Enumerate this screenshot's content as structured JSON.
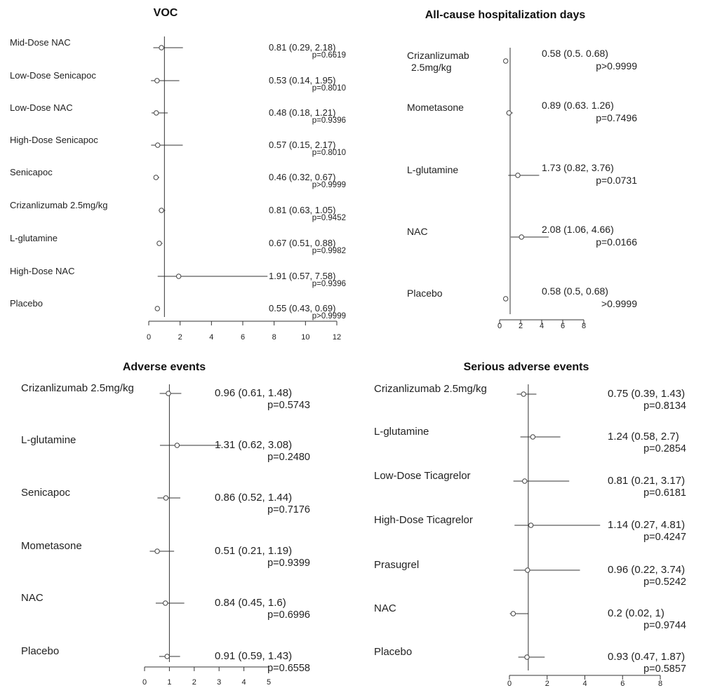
{
  "chart_data": [
    {
      "type": "forest",
      "title": "VOC",
      "ref_line": 1,
      "xlim": [
        0,
        12
      ],
      "xticks": [
        "0",
        "2",
        "4",
        "6",
        "8",
        "10",
        "12"
      ],
      "rows": [
        {
          "label": "Mid-Dose NAC",
          "est": 0.81,
          "lo": 0.29,
          "hi": 2.18,
          "ci_text": "0.81 (0.29, 2.18)",
          "p_text": "p=0.6619"
        },
        {
          "label": "Low-Dose Senicapoc",
          "est": 0.53,
          "lo": 0.14,
          "hi": 1.95,
          "ci_text": "0.53 (0.14, 1.95)",
          "p_text": "p=0.8010"
        },
        {
          "label": "Low-Dose NAC",
          "est": 0.48,
          "lo": 0.18,
          "hi": 1.21,
          "ci_text": "0.48 (0.18, 1.21)",
          "p_text": "p=0.9396"
        },
        {
          "label": "High-Dose Senicapoc",
          "est": 0.57,
          "lo": 0.15,
          "hi": 2.17,
          "ci_text": "0.57 (0.15, 2.17)",
          "p_text": "p=0.8010"
        },
        {
          "label": "Senicapoc",
          "est": 0.46,
          "lo": 0.32,
          "hi": 0.67,
          "ci_text": "0.46 (0.32, 0.67)",
          "p_text": "p>0.9999"
        },
        {
          "label": "Crizanlizumab 2.5mg/kg",
          "est": 0.81,
          "lo": 0.63,
          "hi": 1.05,
          "ci_text": "0.81 (0.63, 1.05)",
          "p_text": "p=0.9452"
        },
        {
          "label": "L-glutamine",
          "est": 0.67,
          "lo": 0.51,
          "hi": 0.88,
          "ci_text": "0.67 (0.51, 0.88)",
          "p_text": "p=0.9982"
        },
        {
          "label": "High-Dose NAC",
          "est": 1.91,
          "lo": 0.57,
          "hi": 7.58,
          "ci_text": "1.91 (0.57, 7.58)",
          "p_text": "p=0.9396"
        },
        {
          "label": "Placebo",
          "est": 0.55,
          "lo": 0.43,
          "hi": 0.69,
          "ci_text": "0.55 (0.43, 0.69)",
          "p_text": "p>0.9999"
        }
      ]
    },
    {
      "type": "forest",
      "title": "All-cause hospitalization days",
      "ref_line": 1,
      "xlim": [
        0,
        8
      ],
      "xticks": [
        "0",
        "2",
        "4",
        "6",
        "8"
      ],
      "rows": [
        {
          "label": "Crizanlizumab",
          "label2": "2.5mg/kg",
          "est": 0.58,
          "lo": 0.5,
          "hi": 0.68,
          "ci_text": "0.58 (0.5. 0.68)",
          "p_text": "p>0.9999"
        },
        {
          "label": "Mometasone",
          "est": 0.89,
          "lo": 0.63,
          "hi": 1.26,
          "ci_text": "0.89 (0.63. 1.26)",
          "p_text": "p=0.7496"
        },
        {
          "label": "L-glutamine",
          "est": 1.73,
          "lo": 0.82,
          "hi": 3.76,
          "ci_text": "1.73 (0.82, 3.76)",
          "p_text": "p=0.0731"
        },
        {
          "label": "NAC",
          "est": 2.08,
          "lo": 1.06,
          "hi": 4.66,
          "ci_text": "2.08 (1.06, 4.66)",
          "p_text": "p=0.0166"
        },
        {
          "label": "Placebo",
          "est": 0.58,
          "lo": 0.5,
          "hi": 0.68,
          "ci_text": "0.58 (0.5, 0.68)",
          "p_text": ">0.9999"
        }
      ]
    },
    {
      "type": "forest",
      "title": "Adverse events",
      "ref_line": 1,
      "xlim": [
        0,
        5
      ],
      "xticks": [
        "0",
        "1",
        "2",
        "3",
        "4",
        "5"
      ],
      "rows": [
        {
          "label": "Crizanlizumab 2.5mg/kg",
          "est": 0.96,
          "lo": 0.61,
          "hi": 1.48,
          "ci_text": "0.96 (0.61, 1.48)",
          "p_text": "p=0.5743"
        },
        {
          "label": "L-glutamine",
          "est": 1.31,
          "lo": 0.62,
          "hi": 3.08,
          "ci_text": "1.31 (0.62, 3.08)",
          "p_text": "p=0.2480"
        },
        {
          "label": "Senicapoc",
          "est": 0.86,
          "lo": 0.52,
          "hi": 1.44,
          "ci_text": "0.86 (0.52, 1.44)",
          "p_text": "p=0.7176"
        },
        {
          "label": "Mometasone",
          "est": 0.51,
          "lo": 0.21,
          "hi": 1.19,
          "ci_text": "0.51 (0.21, 1.19)",
          "p_text": "p=0.9399"
        },
        {
          "label": "NAC",
          "est": 0.84,
          "lo": 0.45,
          "hi": 1.6,
          "ci_text": "0.84 (0.45, 1.6)",
          "p_text": "p=0.6996"
        },
        {
          "label": "Placebo",
          "est": 0.91,
          "lo": 0.59,
          "hi": 1.43,
          "ci_text": "0.91 (0.59, 1.43)",
          "p_text": "p=0.6558"
        }
      ]
    },
    {
      "type": "forest",
      "title": "Serious adverse events",
      "ref_line": 1,
      "xlim": [
        0,
        8
      ],
      "xticks": [
        "0",
        "2",
        "4",
        "6",
        "8"
      ],
      "rows": [
        {
          "label": "Crizanlizumab 2.5mg/kg",
          "est": 0.75,
          "lo": 0.39,
          "hi": 1.43,
          "ci_text": "0.75 (0.39, 1.43)",
          "p_text": "p=0.8134"
        },
        {
          "label": "L-glutamine",
          "est": 1.24,
          "lo": 0.58,
          "hi": 2.7,
          "ci_text": "1.24 (0.58, 2.7)",
          "p_text": "p=0.2854"
        },
        {
          "label": "Low-Dose Ticagrelor",
          "est": 0.81,
          "lo": 0.21,
          "hi": 3.17,
          "ci_text": "0.81 (0.21, 3.17)",
          "p_text": "p=0.6181"
        },
        {
          "label": "High-Dose Ticagrelor",
          "est": 1.14,
          "lo": 0.27,
          "hi": 4.81,
          "ci_text": "1.14 (0.27, 4.81)",
          "p_text": "p=0.4247"
        },
        {
          "label": "Prasugrel",
          "est": 0.96,
          "lo": 0.22,
          "hi": 3.74,
          "ci_text": "0.96 (0.22, 3.74)",
          "p_text": "p=0.5242"
        },
        {
          "label": "NAC",
          "est": 0.2,
          "lo": 0.02,
          "hi": 1,
          "ci_text": "0.2 (0.02, 1)",
          "p_text": "p=0.9744"
        },
        {
          "label": "Placebo",
          "est": 0.93,
          "lo": 0.47,
          "hi": 1.87,
          "ci_text": "0.93 (0.47, 1.87)",
          "p_text": "p=0.5857"
        }
      ]
    }
  ]
}
